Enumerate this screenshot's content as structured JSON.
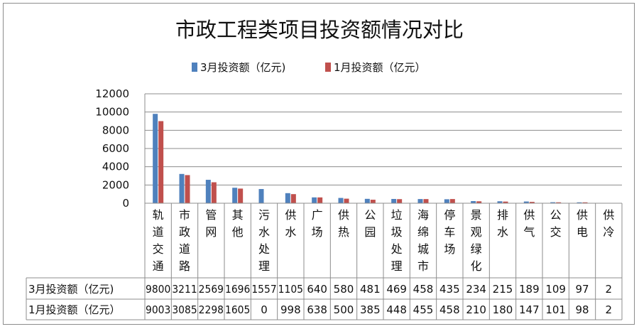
{
  "chart_data": {
    "type": "bar",
    "title": "市政工程类项目投资额情况对比",
    "ylim": [
      0,
      12000
    ],
    "yticks": [
      "0",
      "2000",
      "4000",
      "6000",
      "8000",
      "10000",
      "12000"
    ],
    "legend_position": "top",
    "gridlines": true,
    "categories": [
      "轨道交通",
      "市政道路",
      "管网",
      "其他",
      "污水处理",
      "供水",
      "广场",
      "供热",
      "公园",
      "垃圾处理",
      "海绵城市",
      "停车场",
      "景观绿化",
      "排水",
      "供气",
      "公交",
      "供电",
      "供冷"
    ],
    "series": [
      {
        "name": "3月投资额（亿元)",
        "table_label": "3月投资额（亿元)",
        "color": "#4f81bd",
        "values": [
          9800,
          3211,
          2569,
          1696,
          1557,
          1105,
          640,
          580,
          481,
          469,
          458,
          435,
          234,
          215,
          189,
          109,
          97,
          2
        ]
      },
      {
        "name": "1月投资额（亿元）",
        "table_label": "1月投资额（亿元）",
        "color": "#c0504d",
        "values": [
          9003,
          3085,
          2298,
          1605,
          0,
          998,
          638,
          500,
          385,
          448,
          455,
          458,
          210,
          180,
          147,
          101,
          98,
          2
        ]
      }
    ]
  }
}
